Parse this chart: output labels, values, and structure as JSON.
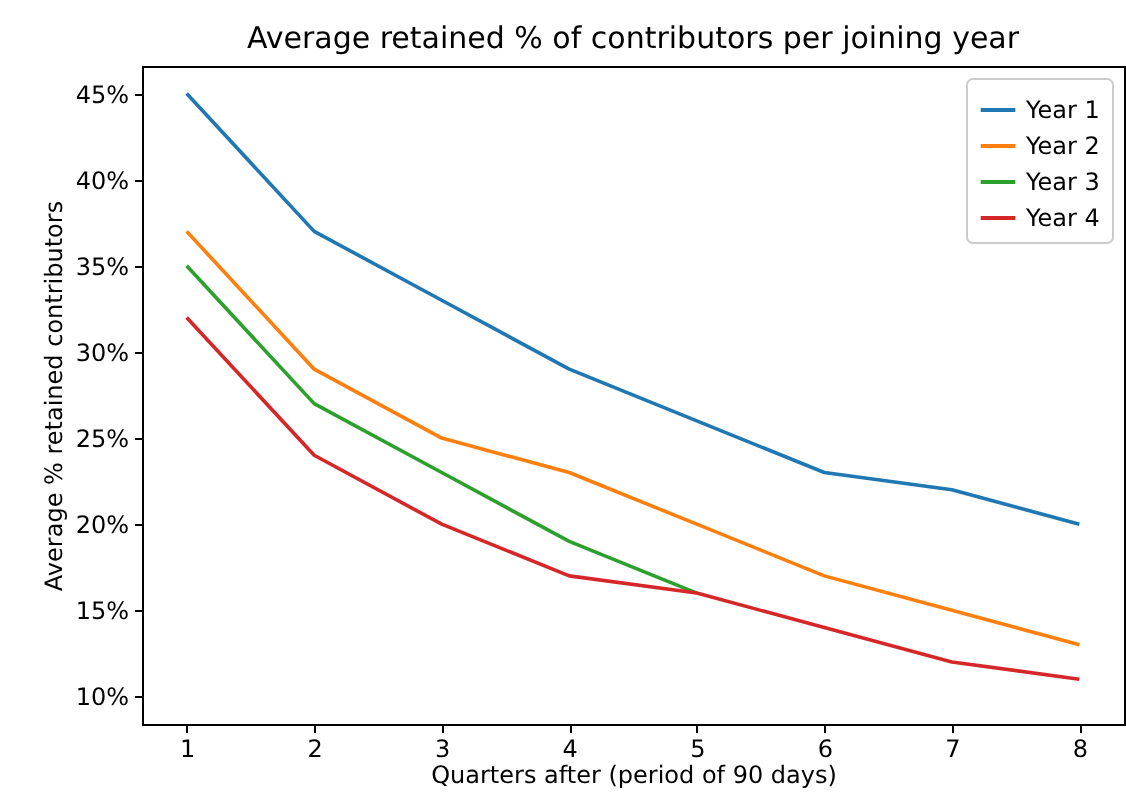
{
  "chart_data": {
    "type": "line",
    "title": "Average retained % of contributors per joining year",
    "xlabel": "Quarters after (period of 90 days)",
    "ylabel": "Average % retained contributors",
    "x": [
      1,
      2,
      3,
      4,
      5,
      6,
      7,
      8
    ],
    "series": [
      {
        "name": "Year 1",
        "color": "#1f77b4",
        "values": [
          45,
          37,
          33,
          29,
          26,
          23,
          22,
          20
        ]
      },
      {
        "name": "Year 2",
        "color": "#ff7f0e",
        "values": [
          37,
          29,
          25,
          23,
          20,
          17,
          15,
          13
        ]
      },
      {
        "name": "Year 3",
        "color": "#2ca02c",
        "values": [
          35,
          27,
          23,
          19,
          16,
          null,
          null,
          null
        ]
      },
      {
        "name": "Year 4",
        "color": "#d62728",
        "values": [
          32,
          24,
          20,
          17,
          16,
          14,
          12,
          11
        ]
      }
    ],
    "xlim": [
      0.65,
      8.35
    ],
    "xticks": [
      1,
      2,
      3,
      4,
      5,
      6,
      7,
      8
    ],
    "ylim": [
      8.4,
      46.6
    ],
    "yticks": [
      {
        "value": 10,
        "label": "10%"
      },
      {
        "value": 15,
        "label": "15%"
      },
      {
        "value": 20,
        "label": "20%"
      },
      {
        "value": 25,
        "label": "25%"
      },
      {
        "value": 30,
        "label": "30%"
      },
      {
        "value": 35,
        "label": "35%"
      },
      {
        "value": 40,
        "label": "40%"
      },
      {
        "value": 45,
        "label": "45%"
      }
    ],
    "grid": false,
    "legend": "top right",
    "marker": "none",
    "line_style": "solid"
  }
}
